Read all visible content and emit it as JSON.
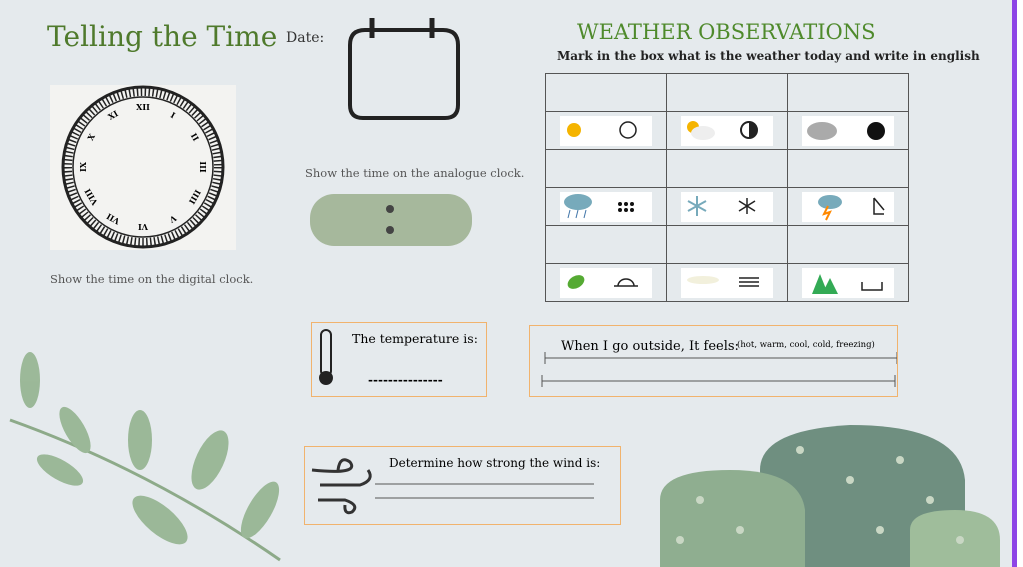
{
  "header": {
    "title": "Telling the Time",
    "date_label": "Date:"
  },
  "clock": {
    "numerals": [
      "XII",
      "I",
      "II",
      "III",
      "IIII",
      "V",
      "VI",
      "VII",
      "VIII",
      "IX",
      "X",
      "XI"
    ],
    "analogue_caption": "Show the time on the analogue clock.",
    "digital_caption": "Show the time on the digital clock."
  },
  "weather": {
    "title": "WEATHER OBSERVATIONS",
    "instruction": "Mark in the box what is the weather today and write in english"
  },
  "temperature": {
    "label": "The temperature is:",
    "blank": "---------------"
  },
  "feels": {
    "label": "When I go outside, It feels:",
    "options": "(hot, warm, cool, cold, freezing)"
  },
  "wind": {
    "label": "Determine how strong the wind is:"
  }
}
